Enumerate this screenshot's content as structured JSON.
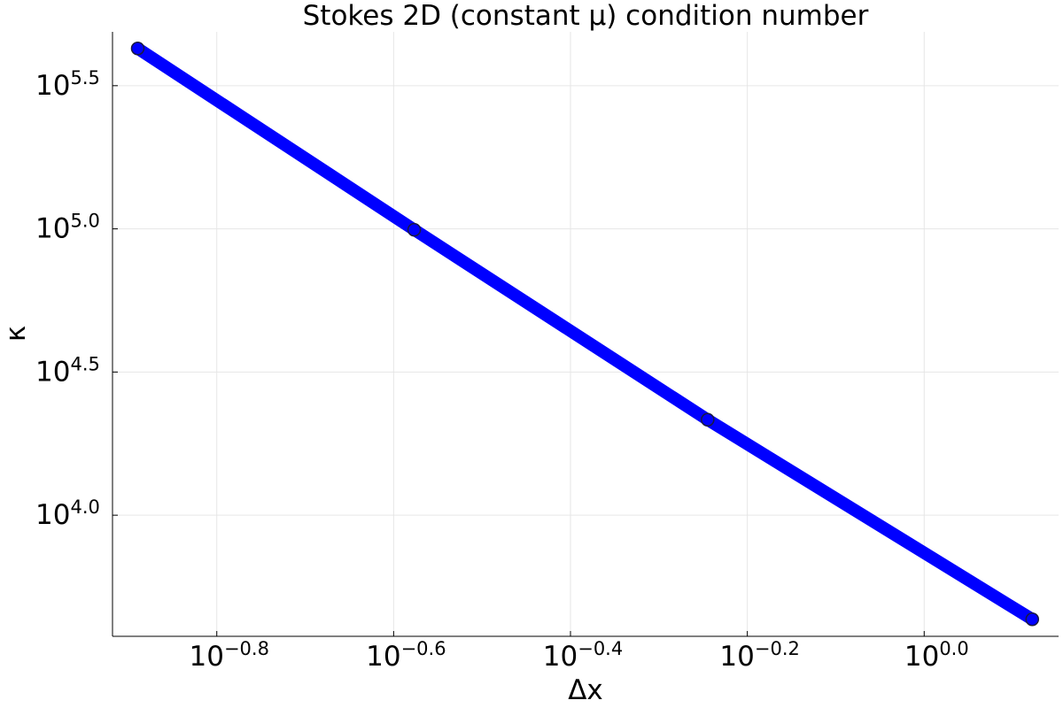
{
  "chart_data": {
    "type": "line",
    "title": "Stokes 2D (constant μ) condition number",
    "x_label": "Δx",
    "y_label": "κ",
    "x_scale": "log",
    "y_scale": "log",
    "grid": true,
    "x": [
      0.129,
      0.265,
      0.569,
      1.325
    ],
    "series": [
      {
        "name": "κ",
        "color": "#0000ff",
        "values": [
          426600,
          99300,
          21550,
          4330
        ]
      }
    ],
    "xlim": [
      0.1208,
      1.419
    ],
    "ylim": [
      3776,
      487500
    ],
    "xticks": [
      {
        "value": 0.158489,
        "label": "10",
        "exponent": "−0.8"
      },
      {
        "value": 0.251189,
        "label": "10",
        "exponent": "−0.6"
      },
      {
        "value": 0.398107,
        "label": "10",
        "exponent": "−0.4"
      },
      {
        "value": 0.630957,
        "label": "10",
        "exponent": "−0.2"
      },
      {
        "value": 1,
        "label": "10",
        "exponent": "0.0"
      }
    ],
    "yticks": [
      {
        "value": 10000,
        "label": "10",
        "exponent": "4.0"
      },
      {
        "value": 31622.8,
        "label": "10",
        "exponent": "4.5"
      },
      {
        "value": 100000,
        "label": "10",
        "exponent": "5.0"
      },
      {
        "value": 316228,
        "label": "10",
        "exponent": "5.5"
      }
    ]
  }
}
